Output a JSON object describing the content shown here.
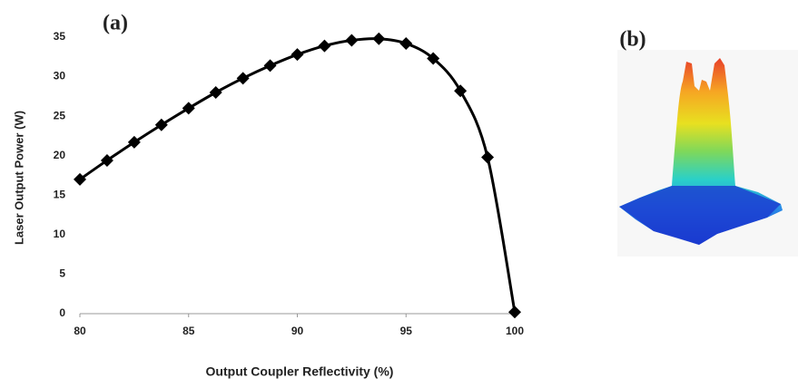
{
  "chart_data": {
    "type": "line",
    "panel_label": "(a)",
    "xlabel": "Output Coupler Reflectivity (%)",
    "ylabel": "Laser Output Power (W)",
    "x": [
      80,
      81.25,
      82.5,
      83.75,
      85,
      86.25,
      87.5,
      88.75,
      90,
      91.25,
      92.5,
      93.75,
      95,
      96.25,
      97.5,
      98.75,
      100
    ],
    "values": [
      17,
      19.4,
      21.7,
      23.9,
      26,
      28,
      29.8,
      31.4,
      32.8,
      33.9,
      34.6,
      34.8,
      34.2,
      32.3,
      28.2,
      19.8,
      0.2
    ],
    "color": "#000000",
    "marker": "diamond",
    "xlim": [
      80,
      100
    ],
    "xticks": [
      80,
      85,
      90,
      95,
      100
    ],
    "ylim": [
      0,
      35
    ],
    "yticks": [
      0,
      5,
      10,
      15,
      20,
      25,
      30,
      35
    ],
    "grid": false
  },
  "image_panel": {
    "label": "(b)"
  }
}
